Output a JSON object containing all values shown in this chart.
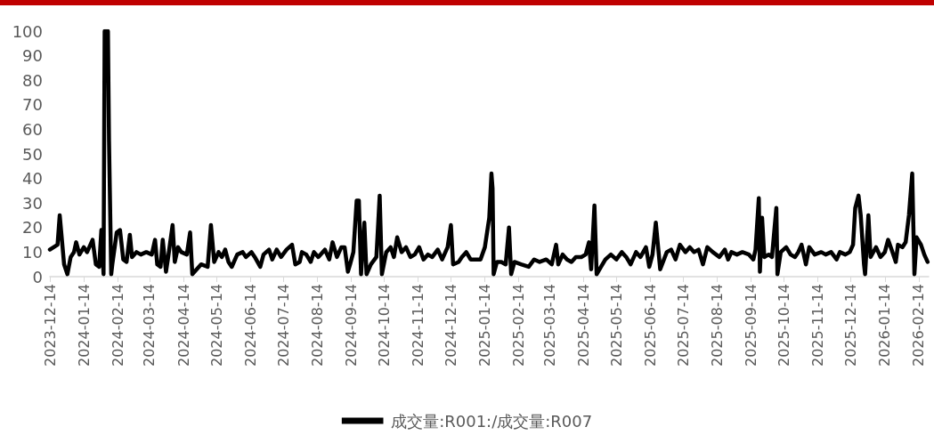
{
  "chart_data": {
    "type": "line",
    "x": [
      "2023-12-14",
      "2023-12-21",
      "2023-12-23",
      "2023-12-27",
      "2023-12-30",
      "2024-01-02",
      "2024-01-05",
      "2024-01-07",
      "2024-01-10",
      "2024-01-14",
      "2024-01-17",
      "2024-01-20",
      "2024-01-22",
      "2024-01-25",
      "2024-01-28",
      "2024-01-30",
      "2024-02-01",
      "2024-02-02",
      "2024-02-05",
      "2024-02-06",
      "2024-02-08",
      "2024-02-09",
      "2024-02-13",
      "2024-02-16",
      "2024-02-19",
      "2024-02-22",
      "2024-02-25",
      "2024-02-27",
      "2024-03-02",
      "2024-03-06",
      "2024-03-11",
      "2024-03-16",
      "2024-03-19",
      "2024-03-21",
      "2024-03-24",
      "2024-03-26",
      "2024-03-29",
      "2024-03-31",
      "2024-04-04",
      "2024-04-06",
      "2024-04-09",
      "2024-04-12",
      "2024-04-17",
      "2024-04-20",
      "2024-04-22",
      "2024-04-26",
      "2024-04-30",
      "2024-05-06",
      "2024-05-09",
      "2024-05-12",
      "2024-05-16",
      "2024-05-19",
      "2024-05-22",
      "2024-05-25",
      "2024-05-28",
      "2024-06-02",
      "2024-06-07",
      "2024-06-10",
      "2024-06-15",
      "2024-06-18",
      "2024-06-23",
      "2024-06-26",
      "2024-07-01",
      "2024-07-04",
      "2024-07-08",
      "2024-07-12",
      "2024-07-17",
      "2024-07-22",
      "2024-07-25",
      "2024-07-29",
      "2024-07-31",
      "2024-08-04",
      "2024-08-08",
      "2024-08-11",
      "2024-08-15",
      "2024-08-21",
      "2024-08-25",
      "2024-08-28",
      "2024-09-01",
      "2024-09-05",
      "2024-09-08",
      "2024-09-11",
      "2024-09-13",
      "2024-09-16",
      "2024-09-19",
      "2024-09-21",
      "2024-09-23",
      "2024-09-26",
      "2024-09-28",
      "2024-10-02",
      "2024-10-07",
      "2024-10-10",
      "2024-10-12",
      "2024-10-16",
      "2024-10-20",
      "2024-10-23",
      "2024-10-26",
      "2024-10-30",
      "2024-11-03",
      "2024-11-07",
      "2024-11-11",
      "2024-11-15",
      "2024-11-19",
      "2024-11-23",
      "2024-11-27",
      "2024-12-02",
      "2024-12-06",
      "2024-12-11",
      "2024-12-14",
      "2024-12-16",
      "2024-12-21",
      "2024-12-24",
      "2024-12-28",
      "2025-01-01",
      "2025-01-06",
      "2025-01-10",
      "2025-01-14",
      "2025-01-18",
      "2025-01-20",
      "2025-01-21",
      "2025-01-22",
      "2025-01-25",
      "2025-01-29",
      "2025-02-02",
      "2025-02-05",
      "2025-02-07",
      "2025-02-10",
      "2025-02-16",
      "2025-02-23",
      "2025-02-28",
      "2025-03-05",
      "2025-03-11",
      "2025-03-16",
      "2025-03-20",
      "2025-03-22",
      "2025-03-26",
      "2025-03-30",
      "2025-04-03",
      "2025-04-07",
      "2025-04-12",
      "2025-04-16",
      "2025-04-19",
      "2025-04-21",
      "2025-04-24",
      "2025-04-26",
      "2025-04-30",
      "2025-05-04",
      "2025-05-09",
      "2025-05-14",
      "2025-05-19",
      "2025-05-23",
      "2025-05-27",
      "2025-06-01",
      "2025-06-05",
      "2025-06-10",
      "2025-06-13",
      "2025-06-16",
      "2025-06-19",
      "2025-06-23",
      "2025-06-29",
      "2025-07-03",
      "2025-07-07",
      "2025-07-11",
      "2025-07-16",
      "2025-07-20",
      "2025-07-24",
      "2025-07-28",
      "2025-08-01",
      "2025-08-05",
      "2025-08-10",
      "2025-08-16",
      "2025-08-21",
      "2025-08-24",
      "2025-08-27",
      "2025-09-01",
      "2025-09-06",
      "2025-09-12",
      "2025-09-16",
      "2025-09-18",
      "2025-09-21",
      "2025-09-22",
      "2025-09-24",
      "2025-09-26",
      "2025-09-30",
      "2025-10-03",
      "2025-10-07",
      "2025-10-08",
      "2025-10-11",
      "2025-10-16",
      "2025-10-20",
      "2025-10-24",
      "2025-10-27",
      "2025-10-30",
      "2025-11-03",
      "2025-11-06",
      "2025-11-11",
      "2025-11-17",
      "2025-11-21",
      "2025-11-26",
      "2025-12-01",
      "2025-12-04",
      "2025-12-09",
      "2025-12-13",
      "2025-12-16",
      "2025-12-18",
      "2025-12-21",
      "2025-12-23",
      "2025-12-26",
      "2025-12-27",
      "2025-12-30",
      "2026-01-01",
      "2026-01-06",
      "2026-01-10",
      "2026-01-14",
      "2026-01-17",
      "2026-01-21",
      "2026-01-24",
      "2026-01-26",
      "2026-01-30",
      "2026-02-02",
      "2026-02-05",
      "2026-02-08",
      "2026-02-10",
      "2026-02-12",
      "2026-02-16",
      "2026-02-19",
      "2026-02-22"
    ],
    "series": [
      {
        "name": "成交量:R001:/成交量:R007",
        "color": "#000000",
        "values": [
          11,
          13,
          25,
          5,
          1,
          8,
          10,
          14,
          9,
          12,
          10,
          13,
          15,
          5,
          4,
          19,
          1,
          100,
          100,
          55,
          1,
          5,
          18,
          19,
          7,
          6,
          17,
          8,
          10,
          9,
          10,
          9,
          15,
          5,
          4,
          15,
          2,
          8,
          21,
          6,
          12,
          10,
          9,
          18,
          1,
          3,
          5,
          4,
          21,
          6,
          10,
          8,
          11,
          6,
          4,
          9,
          10,
          8,
          10,
          8,
          4,
          9,
          11,
          7,
          11,
          8,
          11,
          13,
          5,
          6,
          10,
          9,
          6,
          10,
          8,
          11,
          7,
          14,
          8,
          12,
          12,
          2,
          5,
          10,
          31,
          31,
          1,
          22,
          1,
          5,
          8,
          33,
          1,
          10,
          12,
          8,
          16,
          10,
          12,
          8,
          9,
          12,
          7,
          9,
          8,
          11,
          7,
          12,
          21,
          5,
          6,
          8,
          10,
          7,
          7,
          7,
          12,
          24,
          42,
          36,
          1,
          6,
          6,
          5,
          20,
          1,
          6,
          5,
          4,
          7,
          6,
          7,
          5,
          13,
          5,
          9,
          7,
          6,
          8,
          8,
          9,
          14,
          3,
          29,
          1,
          4,
          7,
          9,
          7,
          10,
          8,
          5,
          10,
          8,
          12,
          4,
          9,
          22,
          3,
          10,
          11,
          7,
          13,
          10,
          12,
          10,
          11,
          5,
          12,
          10,
          8,
          11,
          7,
          10,
          9,
          10,
          9,
          7,
          11,
          32,
          2,
          24,
          8,
          9,
          8,
          28,
          1,
          10,
          12,
          9,
          8,
          10,
          13,
          5,
          12,
          9,
          10,
          9,
          10,
          7,
          10,
          9,
          10,
          13,
          28,
          33,
          25,
          5,
          1,
          25,
          8,
          12,
          8,
          10,
          15,
          10,
          6,
          13,
          12,
          14,
          25,
          42,
          1,
          16,
          13,
          9,
          6
        ]
      }
    ],
    "xlim": [
      "2023-12-14",
      "2026-02-23"
    ],
    "xticks": [
      "2023-12-14",
      "2024-01-14",
      "2024-02-14",
      "2024-03-14",
      "2024-04-14",
      "2024-05-14",
      "2024-06-14",
      "2024-07-14",
      "2024-08-14",
      "2024-09-14",
      "2024-10-14",
      "2024-11-14",
      "2024-12-14",
      "2025-01-14",
      "2025-02-14",
      "2025-03-14",
      "2025-04-14",
      "2025-05-14",
      "2025-06-14",
      "2025-07-14",
      "2025-08-14",
      "2025-09-14",
      "2025-10-14",
      "2025-11-14",
      "2025-12-14",
      "2026-01-14",
      "2026-02-14"
    ],
    "ylim": [
      0,
      100
    ],
    "yticks": [
      0,
      10,
      20,
      30,
      40,
      50,
      60,
      70,
      80,
      90,
      100
    ],
    "grid": false,
    "legend": "bottom",
    "marker": "none",
    "line_style": "solid"
  }
}
